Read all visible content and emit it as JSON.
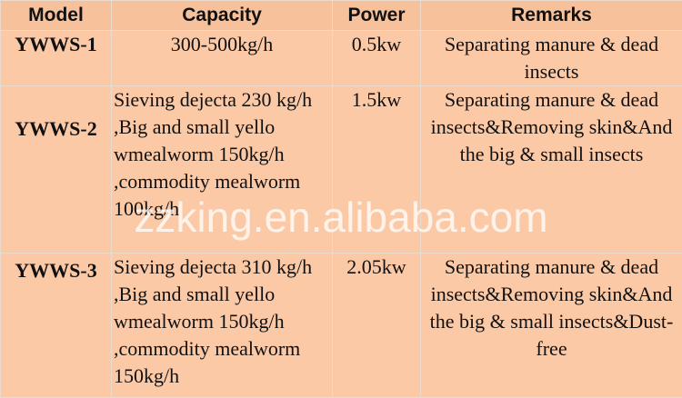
{
  "table": {
    "header": [
      "Model",
      "Capacity",
      "Power",
      "Remarks"
    ],
    "rows": [
      [
        "YWWS-1",
        "300-500kg/h",
        "0.5kw",
        "Separating manure & dead insects"
      ],
      [
        "YWWS-2",
        "Sieving dejecta 230 kg/h ,Big and small yello wmealworm 150kg/h ,commodity mealworm 100kg/h",
        "1.5kw",
        "Separating manure & dead insects&Removing skin&And the big & small insects"
      ],
      [
        "YWWS-3",
        "Sieving dejecta 310 kg/h ,Big and small yello wmealworm 150kg/h ,commodity mealworm 150kg/h",
        "2.05kw",
        "Separating manure & dead insects&Removing skin&And the big & small insects&Dust-free"
      ]
    ]
  },
  "watermark": "zzking.en.alibaba.com"
}
